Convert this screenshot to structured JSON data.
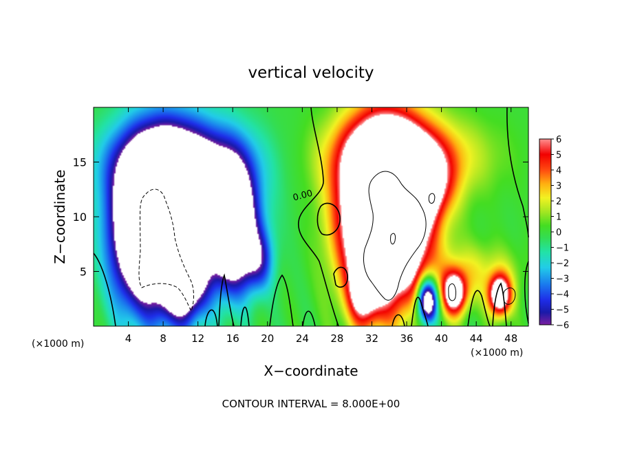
{
  "chart_data": {
    "type": "heatmap",
    "title": "vertical velocity",
    "xlabel": "X−coordinate",
    "ylabel": "Z−coordinate",
    "x_unit_left": "(×1000 m)",
    "x_unit_right": "(×1000 m)",
    "xlim": [
      0,
      50
    ],
    "ylim": [
      0,
      20
    ],
    "x_ticks": [
      4,
      8,
      12,
      16,
      20,
      24,
      28,
      32,
      36,
      40,
      44,
      48
    ],
    "y_ticks": [
      5,
      10,
      15
    ],
    "contour_label": "0.00",
    "footer": "CONTOUR INTERVAL = 8.000E+00",
    "colorbar": {
      "range": [
        -6,
        6
      ],
      "ticks": [
        6,
        5,
        4,
        3,
        2,
        1,
        0,
        "−1",
        "−2",
        "−3",
        "−4",
        "−5",
        "−6"
      ],
      "stops": [
        {
          "v": -6,
          "c": "#7a1fa0"
        },
        {
          "v": -5.2,
          "c": "#1a1aa8"
        },
        {
          "v": -4.4,
          "c": "#1e2de8"
        },
        {
          "v": -3.4,
          "c": "#1a7aee"
        },
        {
          "v": -2.3,
          "c": "#22cce8"
        },
        {
          "v": -1.3,
          "c": "#22e2a6"
        },
        {
          "v": -0.4,
          "c": "#33dd55"
        },
        {
          "v": 0.4,
          "c": "#44dd22"
        },
        {
          "v": 1.3,
          "c": "#a4e622"
        },
        {
          "v": 2.2,
          "c": "#f2f222"
        },
        {
          "v": 3.1,
          "c": "#ffb010"
        },
        {
          "v": 4.0,
          "c": "#ff4a10"
        },
        {
          "v": 5.0,
          "c": "#f20000"
        },
        {
          "v": 6.0,
          "c": "#ff9090"
        }
      ]
    },
    "features": [
      {
        "sign": -1,
        "x": 7.5,
        "y": 9.5,
        "amp": 14,
        "sx": 3.2,
        "sy": 5.2
      },
      {
        "sign": -1,
        "x": 11.5,
        "y": 11.5,
        "amp": 6,
        "sx": 4.5,
        "sy": 4.5
      },
      {
        "sign": -1,
        "x": 10.5,
        "y": 4.0,
        "amp": 6,
        "sx": 1.6,
        "sy": 2.5
      },
      {
        "sign": -1,
        "x": 16.0,
        "y": 9.0,
        "amp": 10,
        "sx": 1.8,
        "sy": 3.8
      },
      {
        "sign": -1,
        "x": 19.0,
        "y": 6.0,
        "amp": 4,
        "sx": 1.2,
        "sy": 2.0
      },
      {
        "sign": -1,
        "x": 9.5,
        "y": 15.0,
        "amp": 3.2,
        "sx": 6.5,
        "sy": 2.5
      },
      {
        "sign": -1,
        "x": 4.0,
        "y": 8.0,
        "amp": 2.5,
        "sx": 1.8,
        "sy": 5.0
      },
      {
        "sign": -1,
        "x": 38.4,
        "y": 2.3,
        "amp": 10,
        "sx": 0.8,
        "sy": 1.4
      },
      {
        "sign": 1,
        "x": 33.5,
        "y": 10.5,
        "amp": 20,
        "sx": 3.2,
        "sy": 5.2
      },
      {
        "sign": 1,
        "x": 37.0,
        "y": 13.0,
        "amp": 7,
        "sx": 2.5,
        "sy": 2.2
      },
      {
        "sign": 1,
        "x": 35.5,
        "y": 15.5,
        "amp": 4.5,
        "sx": 6.0,
        "sy": 2.5
      },
      {
        "sign": 1,
        "x": 41.5,
        "y": 3.0,
        "amp": 8,
        "sx": 1.0,
        "sy": 1.4
      },
      {
        "sign": 1,
        "x": 46.7,
        "y": 2.8,
        "amp": 9,
        "sx": 0.9,
        "sy": 1.3
      },
      {
        "sign": 1,
        "x": 44.0,
        "y": 5.0,
        "amp": 2,
        "sx": 3.5,
        "sy": 1.8
      },
      {
        "sign": 1,
        "x": 31.0,
        "y": 3.0,
        "amp": 5,
        "sx": 1.2,
        "sy": 2.0
      }
    ]
  }
}
